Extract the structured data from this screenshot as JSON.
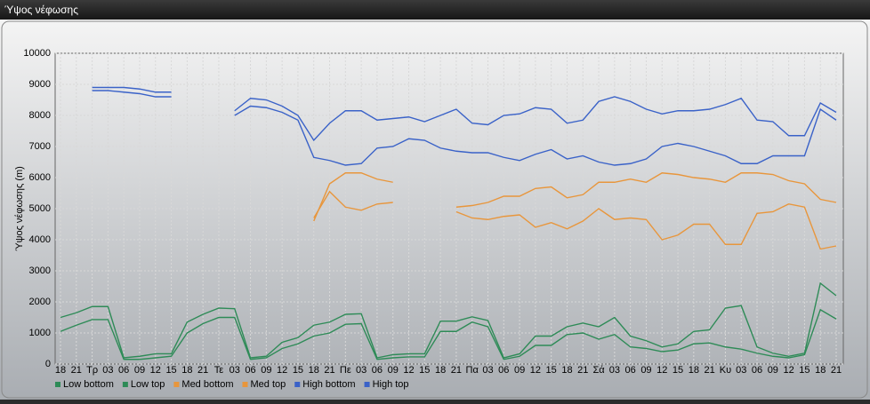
{
  "window_title": "Ύψος νέφωσης",
  "chart_data": {
    "type": "line",
    "ylabel": "Ύψος νέφωσης (m)",
    "categories": [
      "18",
      "21",
      "Τρ",
      "03",
      "06",
      "09",
      "12",
      "15",
      "18",
      "21",
      "Τε",
      "03",
      "06",
      "09",
      "12",
      "15",
      "18",
      "21",
      "Πε",
      "03",
      "06",
      "09",
      "12",
      "15",
      "18",
      "21",
      "Πα",
      "03",
      "06",
      "09",
      "12",
      "15",
      "18",
      "21",
      "Σά",
      "03",
      "06",
      "09",
      "12",
      "15",
      "18",
      "21",
      "Κυ",
      "03",
      "06",
      "09",
      "12",
      "15",
      "18",
      "21"
    ],
    "ylim": [
      0,
      10000
    ],
    "yticks": [
      0,
      1000,
      2000,
      3000,
      4000,
      5000,
      6000,
      7000,
      8000,
      9000,
      10000
    ],
    "grid": true,
    "legend": "bottom",
    "series": [
      {
        "name": "Low bottom",
        "color": "#2e8b57",
        "values": [
          1050,
          1250,
          1430,
          1430,
          150,
          150,
          200,
          250,
          1000,
          1300,
          1500,
          1500,
          150,
          200,
          500,
          650,
          900,
          1000,
          1280,
          1300,
          150,
          200,
          230,
          230,
          1050,
          1050,
          1350,
          1200,
          150,
          250,
          600,
          600,
          950,
          1000,
          800,
          950,
          550,
          500,
          400,
          450,
          650,
          680,
          550,
          480,
          350,
          250,
          200,
          300,
          1750,
          1450
        ]
      },
      {
        "name": "Low top",
        "color": "#2e8b57",
        "values": [
          1500,
          1650,
          1850,
          1850,
          200,
          250,
          330,
          330,
          1350,
          1600,
          1800,
          1780,
          200,
          250,
          700,
          850,
          1250,
          1350,
          1600,
          1620,
          200,
          300,
          330,
          330,
          1380,
          1380,
          1520,
          1400,
          200,
          330,
          900,
          900,
          1200,
          1320,
          1200,
          1500,
          900,
          750,
          550,
          650,
          1050,
          1100,
          1800,
          1880,
          550,
          350,
          250,
          350,
          2600,
          2200
        ]
      },
      {
        "name": "Med bottom",
        "color": "#e8963c",
        "values": [
          null,
          null,
          null,
          null,
          null,
          null,
          null,
          null,
          null,
          null,
          null,
          null,
          null,
          null,
          null,
          null,
          4700,
          5550,
          5050,
          4950,
          5150,
          5200,
          null,
          null,
          null,
          4900,
          4700,
          4650,
          4750,
          4800,
          4400,
          4550,
          4350,
          4600,
          5000,
          4650,
          4700,
          4650,
          4000,
          4150,
          4500,
          4500,
          3850,
          3850,
          4850,
          4900,
          5150,
          5050,
          3700,
          3800
        ]
      },
      {
        "name": "Med top",
        "color": "#e8963c",
        "values": [
          null,
          null,
          null,
          null,
          null,
          null,
          null,
          null,
          null,
          null,
          null,
          null,
          null,
          null,
          null,
          null,
          4600,
          5800,
          6150,
          6150,
          5950,
          5850,
          null,
          null,
          null,
          5050,
          5100,
          5200,
          5400,
          5400,
          5650,
          5700,
          5350,
          5450,
          5850,
          5850,
          5950,
          5850,
          6150,
          6100,
          6000,
          5950,
          5850,
          6150,
          6150,
          6100,
          5900,
          5800,
          5300,
          5200
        ]
      },
      {
        "name": "High bottom",
        "color": "#3a62c8",
        "values": [
          null,
          null,
          8800,
          8800,
          8750,
          8700,
          8600,
          8600,
          null,
          null,
          null,
          8000,
          8300,
          8250,
          8100,
          7850,
          6650,
          6550,
          6400,
          6450,
          6950,
          7000,
          7250,
          7200,
          6950,
          6850,
          6800,
          6800,
          6650,
          6550,
          6750,
          6900,
          6600,
          6700,
          6500,
          6400,
          6450,
          6600,
          7000,
          7100,
          7000,
          6850,
          6700,
          6450,
          6450,
          6700,
          6700,
          6700,
          8200,
          7850
        ]
      },
      {
        "name": "High top",
        "color": "#3a62c8",
        "values": [
          null,
          null,
          8900,
          8900,
          8900,
          8850,
          8750,
          8750,
          null,
          null,
          null,
          8150,
          8550,
          8500,
          8300,
          8000,
          7200,
          7750,
          8150,
          8150,
          7850,
          7900,
          7950,
          7800,
          8000,
          8200,
          7750,
          7700,
          8000,
          8050,
          8250,
          8200,
          7750,
          7850,
          8450,
          8600,
          8450,
          8200,
          8050,
          8150,
          8150,
          8200,
          8350,
          8550,
          7850,
          7800,
          7350,
          7350,
          8400,
          8100
        ]
      }
    ]
  }
}
